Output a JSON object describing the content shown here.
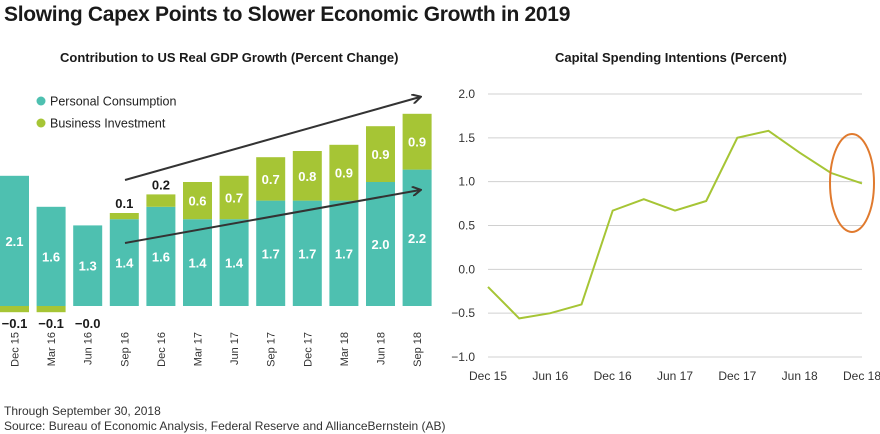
{
  "title": "Slowing Capex Points to Slower Economic Growth in 2019",
  "colors": {
    "consumption": "#4ec0b0",
    "investment": "#a6c535",
    "arrow": "#333333",
    "circle": "#e07a2e",
    "line": "#a6c535"
  },
  "chart_data": [
    {
      "type": "bar",
      "title": "Contribution to US Real GDP Growth (Percent Change)",
      "categories": [
        "Dec 15",
        "Mar 16",
        "Jun 16",
        "Sep 16",
        "Dec 16",
        "Mar 17",
        "Jun 17",
        "Sep 17",
        "Dec 17",
        "Mar 18",
        "Jun 18",
        "Sep 18"
      ],
      "series": [
        {
          "name": "Personal Consumption",
          "values": [
            2.1,
            1.6,
            1.3,
            1.4,
            1.6,
            1.4,
            1.4,
            1.7,
            1.7,
            1.7,
            2.0,
            2.2
          ],
          "labels": [
            "2.1",
            "1.6",
            "1.3",
            "1.4",
            "1.6",
            "1.4",
            "1.4",
            "1.7",
            "1.7",
            "1.7",
            "2.0",
            "2.2"
          ]
        },
        {
          "name": "Business Investment",
          "values": [
            -0.1,
            -0.1,
            -0.0,
            0.1,
            0.2,
            0.6,
            0.7,
            0.7,
            0.8,
            0.9,
            0.9,
            0.9
          ],
          "labels": [
            "−0.1",
            "−0.1",
            "−0.0",
            "0.1",
            "0.2",
            "0.6",
            "0.7",
            "0.7",
            "0.8",
            "0.9",
            "0.9",
            "0.9"
          ]
        }
      ],
      "stacked": true,
      "legend": "top-left",
      "annotations": [
        "upward arrow over bar totals",
        "upward arrow over consumption bars"
      ]
    },
    {
      "type": "line",
      "title": "Capital Spending Intentions (Percent)",
      "x": [
        "Dec 15",
        "Mar 16",
        "Jun 16",
        "Sep 16",
        "Dec 16",
        "Mar 17",
        "Jun 17",
        "Sep 17",
        "Dec 17",
        "Mar 18",
        "Jun 18",
        "Sep 18",
        "Dec 18"
      ],
      "x_tick_labels": [
        "Dec 15",
        "Jun 16",
        "Dec 16",
        "Jun 17",
        "Dec 17",
        "Jun 18",
        "Dec 18"
      ],
      "series": [
        {
          "values": [
            -0.2,
            -0.56,
            -0.5,
            -0.4,
            0.67,
            0.8,
            0.67,
            0.78,
            1.5,
            1.58,
            1.33,
            1.1,
            0.98
          ]
        }
      ],
      "ylim": [
        -1.0,
        2.0
      ],
      "y_ticks": [
        "2.0",
        "1.5",
        "1.0",
        "0.5",
        "0.0",
        "−0.5",
        "−1.0"
      ],
      "grid": true,
      "annotations": [
        "circle around most recent decline"
      ]
    }
  ],
  "footnotes": {
    "line1": "Through September 30, 2018",
    "line2": "Source: Bureau of Economic Analysis, Federal Reserve and AllianceBernstein (AB)"
  }
}
